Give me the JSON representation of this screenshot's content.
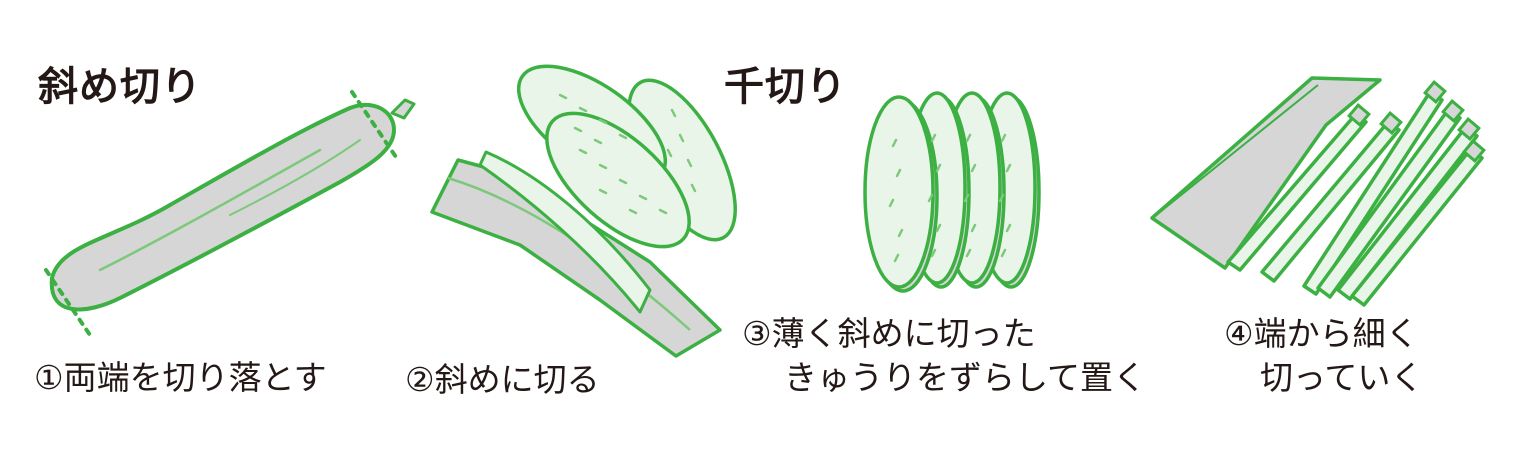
{
  "headings": {
    "diagonal": "斜め切り",
    "julienne": "千切り"
  },
  "steps": [
    {
      "number": "①",
      "lines": [
        "両端を切り落とす"
      ]
    },
    {
      "number": "②",
      "lines": [
        "斜めに切る"
      ]
    },
    {
      "number": "③",
      "lines": [
        "薄く斜めに切った",
        "きゅうりをずらして置く"
      ]
    },
    {
      "number": "④",
      "lines": [
        "端から細く",
        "切っていく"
      ]
    }
  ],
  "colors": {
    "outline": "#3cb043",
    "flesh_gray": "#d6d6d6",
    "flesh_light": "#e9f5e8",
    "seed": "#7cc97c",
    "text": "#231815"
  }
}
